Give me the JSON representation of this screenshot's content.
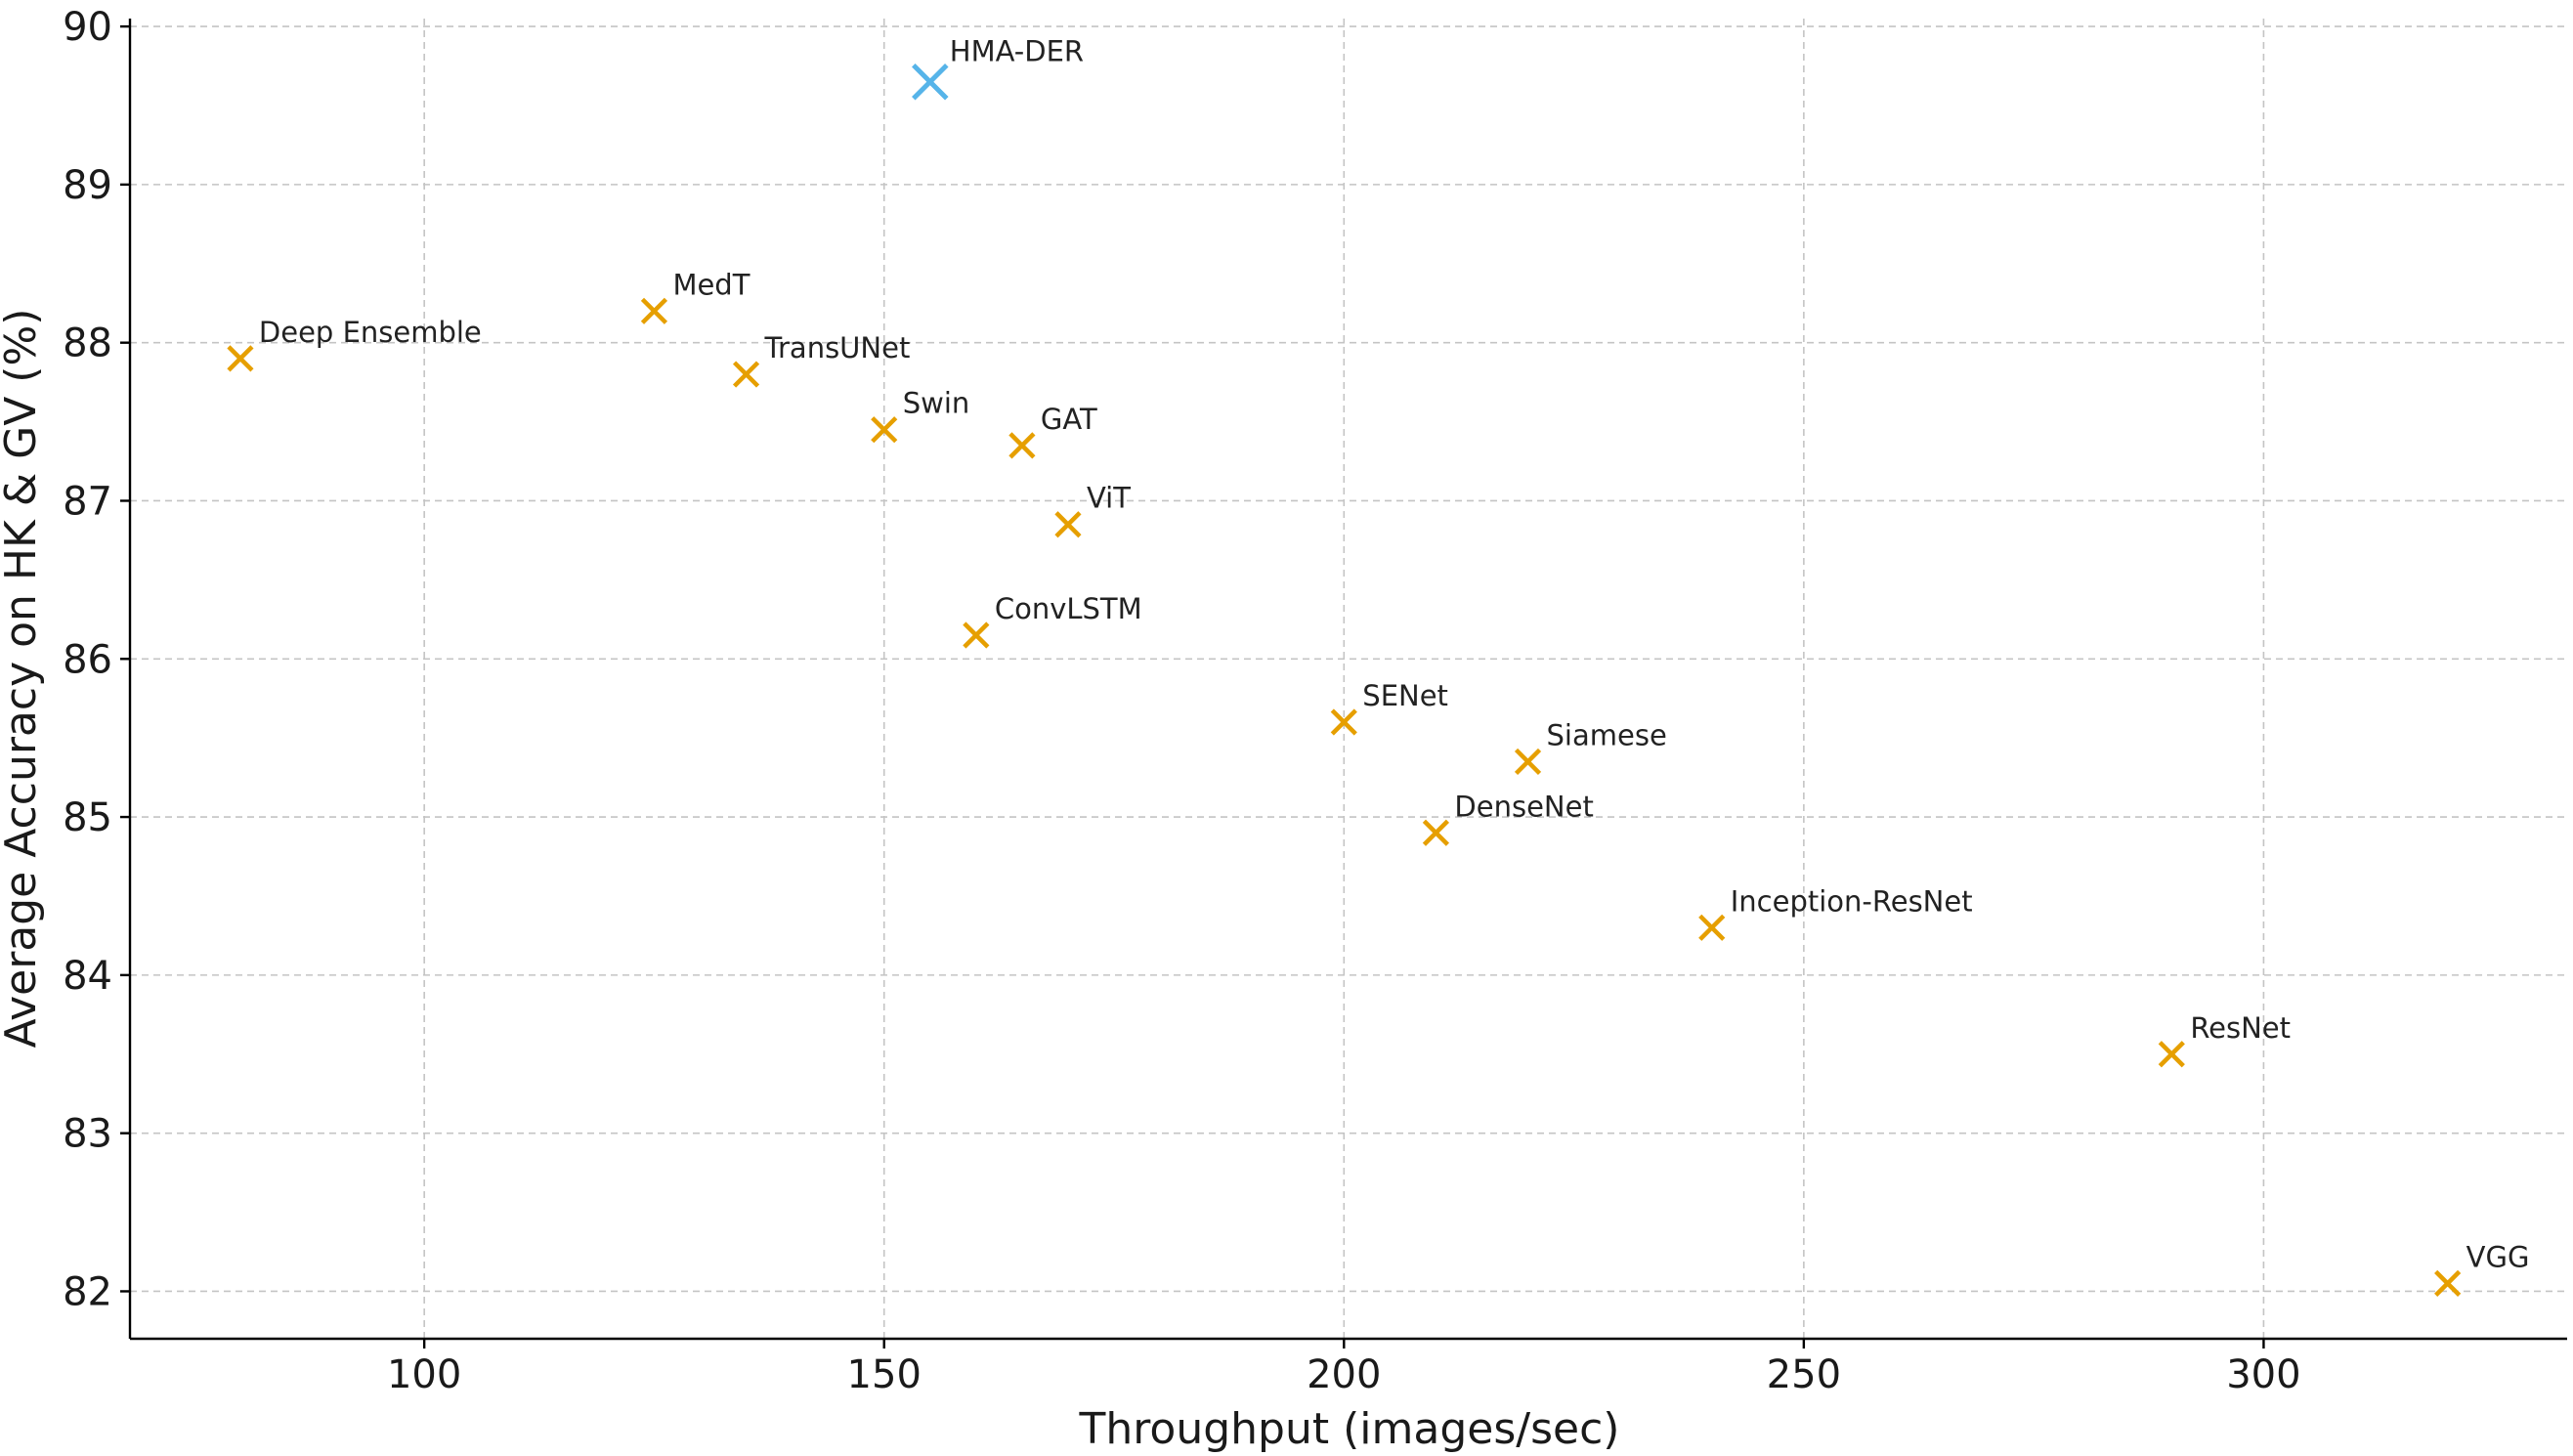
{
  "chart_data": {
    "type": "scatter",
    "title": "",
    "xlabel": "Throughput (images/sec)",
    "ylabel": "Average Accuracy on HK & GV (%)",
    "xlim": [
      68,
      333
    ],
    "ylim": [
      81.7,
      90.05
    ],
    "xticks": [
      100,
      150,
      200,
      250,
      300
    ],
    "yticks": [
      82,
      83,
      84,
      85,
      86,
      87,
      88,
      89,
      90
    ],
    "grid": true,
    "marker": "x",
    "colors": {
      "highlight": "#56B4E9",
      "default": "#E69F00"
    },
    "points": [
      {
        "name": "HMA-DER",
        "x": 155,
        "y": 89.65,
        "highlight": true
      },
      {
        "name": "Deep Ensemble",
        "x": 80,
        "y": 87.9,
        "highlight": false
      },
      {
        "name": "MedT",
        "x": 125,
        "y": 88.2,
        "highlight": false
      },
      {
        "name": "TransUNet",
        "x": 135,
        "y": 87.8,
        "highlight": false
      },
      {
        "name": "Swin",
        "x": 150,
        "y": 87.45,
        "highlight": false
      },
      {
        "name": "GAT",
        "x": 165,
        "y": 87.35,
        "highlight": false
      },
      {
        "name": "ViT",
        "x": 170,
        "y": 86.85,
        "highlight": false
      },
      {
        "name": "ConvLSTM",
        "x": 160,
        "y": 86.15,
        "highlight": false
      },
      {
        "name": "SENet",
        "x": 200,
        "y": 85.6,
        "highlight": false
      },
      {
        "name": "Siamese",
        "x": 220,
        "y": 85.35,
        "highlight": false
      },
      {
        "name": "DenseNet",
        "x": 210,
        "y": 84.9,
        "highlight": false
      },
      {
        "name": "Inception-ResNet",
        "x": 240,
        "y": 84.3,
        "highlight": false
      },
      {
        "name": "ResNet",
        "x": 290,
        "y": 83.5,
        "highlight": false
      },
      {
        "name": "VGG",
        "x": 320,
        "y": 82.05,
        "highlight": false
      }
    ]
  }
}
